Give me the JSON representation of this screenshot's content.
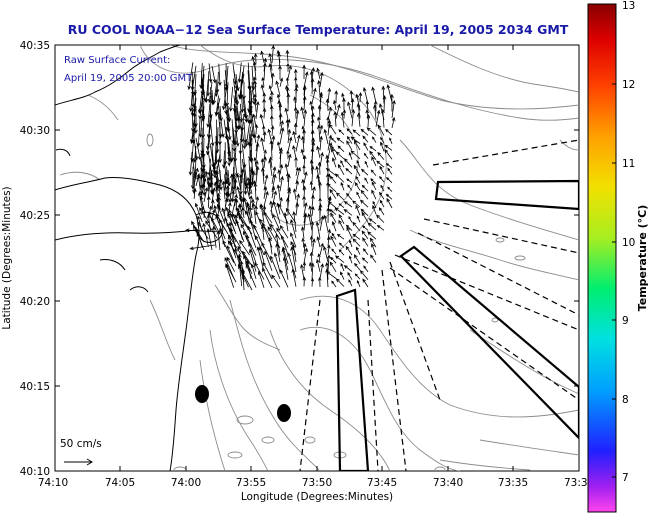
{
  "title": "RU COOL  NOAA−12  Sea Surface Temperature:  April 19, 2005 2034 GMT",
  "current_label": {
    "line1": "Raw Surface Current:",
    "line2": "April 19, 2005 20:00 GMT"
  },
  "scale_label": "50 cm/s",
  "x_axis": {
    "label": "Longitude (Degrees:Minutes)",
    "ticks": [
      "74:10",
      "74:05",
      "74:00",
      "73:55",
      "73:50",
      "73:45",
      "73:40",
      "73:35",
      "73:3"
    ]
  },
  "y_axis": {
    "label": "Latitude (Degrees:Minutes)",
    "ticks": [
      "40:35",
      "40:30",
      "40:25",
      "40:20",
      "40:15",
      "40:10"
    ]
  },
  "colorbar": {
    "label": "Temperature (°C)",
    "ticks": [
      "13",
      "12",
      "11",
      "10",
      "9",
      "8",
      "7"
    ]
  },
  "colors": {
    "title": "#1a1aa8",
    "coast": "#000000",
    "contour": "#8c8c8c",
    "vectors": "#000000"
  }
}
